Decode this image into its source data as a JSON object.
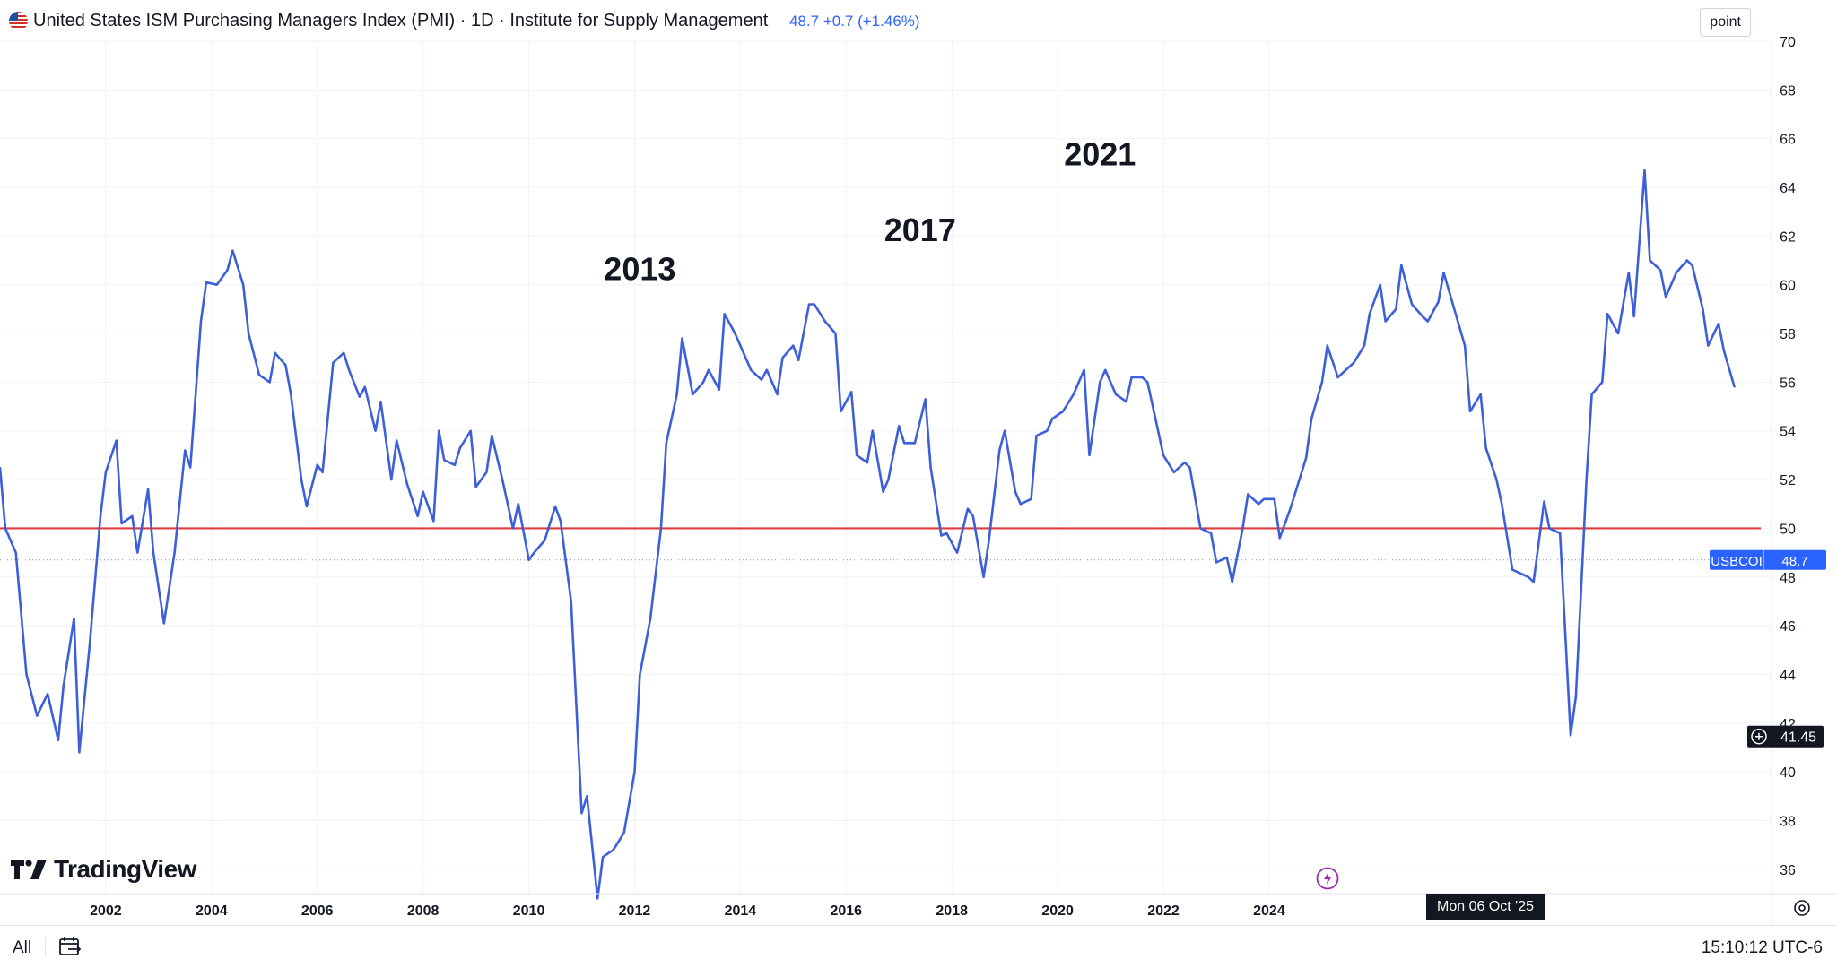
{
  "header": {
    "title": "United States ISM Purchasing Managers Index (PMI) · 1D · Institute for Supply Management",
    "last_value": "48.7",
    "change": "+0.7 (+1.46%)",
    "unit_button": "point",
    "flag_icon": "us-flag-icon"
  },
  "footer": {
    "range_label": "All",
    "calendar_icon": "calendar-range-icon",
    "clock": "15:10:12 UTC-6"
  },
  "branding": {
    "logo_text": "TradingView"
  },
  "price_scale": {
    "series_tag": "USBCOI",
    "series_value": "48.7",
    "crosshair_value": "41.45",
    "crosshair_date": "Mon 06 Oct '25"
  },
  "colors": {
    "series": "#3d5fd9",
    "threshold": "#e03b3b",
    "grid": "#f0f3fa",
    "tag_bg": "#2962ff"
  },
  "chart_data": {
    "type": "line",
    "title": "United States ISM Purchasing Managers Index (PMI)",
    "xlabel": "",
    "ylabel": "",
    "xlim": [
      2000.5,
      2034.0
    ],
    "ylim": [
      35,
      70
    ],
    "x_ticks": [
      "2002",
      "2004",
      "2006",
      "2008",
      "2010",
      "2012",
      "2014",
      "2016",
      "2018",
      "2020",
      "2022",
      "2024"
    ],
    "y_ticks": [
      36,
      38,
      40,
      42,
      44,
      46,
      48,
      50,
      52,
      54,
      56,
      58,
      60,
      62,
      64,
      66,
      68,
      70
    ],
    "threshold_line": 50,
    "last_value_line": 48.7,
    "annotations": [
      {
        "text": "2013",
        "x": 2012.6,
        "y": 60.2
      },
      {
        "text": "2017",
        "x": 2017.9,
        "y": 61.8
      },
      {
        "text": "2021",
        "x": 2021.3,
        "y": 64.9
      }
    ],
    "series": [
      {
        "name": "USBCOI",
        "points": [
          [
            2000.5,
            52.5
          ],
          [
            2000.6,
            50.0
          ],
          [
            2000.8,
            49.0
          ],
          [
            2001.0,
            44.0
          ],
          [
            2001.2,
            42.3
          ],
          [
            2001.4,
            43.2
          ],
          [
            2001.6,
            41.3
          ],
          [
            2001.7,
            43.5
          ],
          [
            2001.9,
            46.3
          ],
          [
            2002.0,
            40.8
          ],
          [
            2002.2,
            45.3
          ],
          [
            2002.4,
            50.5
          ],
          [
            2002.5,
            52.3
          ],
          [
            2002.7,
            53.6
          ],
          [
            2002.8,
            50.2
          ],
          [
            2003.0,
            50.5
          ],
          [
            2003.1,
            49.0
          ],
          [
            2003.3,
            51.6
          ],
          [
            2003.4,
            49.0
          ],
          [
            2003.6,
            46.1
          ],
          [
            2003.8,
            49.0
          ],
          [
            2004.0,
            53.2
          ],
          [
            2004.1,
            52.5
          ],
          [
            2004.3,
            58.5
          ],
          [
            2004.4,
            60.1
          ],
          [
            2004.6,
            60.0
          ],
          [
            2004.8,
            60.6
          ],
          [
            2004.9,
            61.4
          ],
          [
            2005.1,
            60.0
          ],
          [
            2005.2,
            58.0
          ],
          [
            2005.4,
            56.3
          ],
          [
            2005.6,
            56.0
          ],
          [
            2005.7,
            57.2
          ],
          [
            2005.9,
            56.7
          ],
          [
            2006.0,
            55.5
          ],
          [
            2006.2,
            52.0
          ],
          [
            2006.3,
            50.9
          ],
          [
            2006.5,
            52.6
          ],
          [
            2006.6,
            52.3
          ],
          [
            2006.8,
            56.8
          ],
          [
            2007.0,
            57.2
          ],
          [
            2007.1,
            56.5
          ],
          [
            2007.3,
            55.4
          ],
          [
            2007.4,
            55.8
          ],
          [
            2007.6,
            54.0
          ],
          [
            2007.7,
            55.2
          ],
          [
            2007.9,
            52.0
          ],
          [
            2008.0,
            53.6
          ],
          [
            2008.2,
            51.8
          ],
          [
            2008.4,
            50.5
          ],
          [
            2008.5,
            51.5
          ],
          [
            2008.7,
            50.3
          ],
          [
            2008.8,
            54.0
          ],
          [
            2008.9,
            52.8
          ],
          [
            2009.1,
            52.6
          ],
          [
            2009.2,
            53.3
          ],
          [
            2009.4,
            54.0
          ],
          [
            2009.5,
            51.7
          ],
          [
            2009.7,
            52.3
          ],
          [
            2009.8,
            53.8
          ],
          [
            2010.0,
            52.0
          ],
          [
            2010.2,
            50.0
          ],
          [
            2010.3,
            51.0
          ],
          [
            2010.5,
            48.7
          ],
          [
            2010.6,
            49.0
          ],
          [
            2010.8,
            49.5
          ],
          [
            2011.0,
            50.9
          ],
          [
            2011.1,
            50.3
          ],
          [
            2011.3,
            47.0
          ],
          [
            2011.5,
            38.3
          ],
          [
            2011.6,
            39.0
          ],
          [
            2011.8,
            34.8
          ],
          [
            2011.9,
            36.5
          ],
          [
            2012.1,
            36.8
          ],
          [
            2012.3,
            37.5
          ],
          [
            2012.5,
            40.0
          ],
          [
            2012.6,
            44.0
          ],
          [
            2012.8,
            46.3
          ],
          [
            2013.0,
            50.0
          ],
          [
            2013.1,
            53.5
          ],
          [
            2013.3,
            55.5
          ],
          [
            2013.4,
            57.8
          ],
          [
            2013.6,
            55.5
          ],
          [
            2013.8,
            56.0
          ],
          [
            2013.9,
            56.5
          ],
          [
            2014.1,
            55.7
          ],
          [
            2014.2,
            58.8
          ],
          [
            2014.4,
            58.0
          ],
          [
            2014.6,
            57.0
          ],
          [
            2014.7,
            56.5
          ],
          [
            2014.9,
            56.1
          ],
          [
            2015.0,
            56.5
          ],
          [
            2015.2,
            55.5
          ],
          [
            2015.3,
            57.0
          ],
          [
            2015.5,
            57.5
          ],
          [
            2015.6,
            56.9
          ],
          [
            2015.8,
            59.2
          ],
          [
            2015.9,
            59.2
          ],
          [
            2016.1,
            58.5
          ],
          [
            2016.3,
            58.0
          ],
          [
            2016.4,
            54.8
          ],
          [
            2016.6,
            55.6
          ],
          [
            2016.7,
            53.0
          ],
          [
            2016.9,
            52.7
          ],
          [
            2017.0,
            54.0
          ],
          [
            2017.2,
            51.5
          ],
          [
            2017.3,
            52.0
          ],
          [
            2017.5,
            54.2
          ],
          [
            2017.6,
            53.5
          ],
          [
            2017.8,
            53.5
          ],
          [
            2018.0,
            55.3
          ],
          [
            2018.1,
            52.5
          ],
          [
            2018.3,
            49.7
          ],
          [
            2018.4,
            49.8
          ],
          [
            2018.6,
            49.0
          ],
          [
            2018.8,
            50.8
          ],
          [
            2018.9,
            50.5
          ],
          [
            2019.1,
            48.0
          ],
          [
            2019.2,
            49.5
          ],
          [
            2019.4,
            53.2
          ],
          [
            2019.5,
            54.0
          ],
          [
            2019.7,
            51.5
          ],
          [
            2019.8,
            51.0
          ],
          [
            2020.0,
            51.2
          ],
          [
            2020.1,
            53.8
          ],
          [
            2020.3,
            54.0
          ],
          [
            2020.4,
            54.5
          ],
          [
            2020.6,
            54.8
          ],
          [
            2020.8,
            55.5
          ],
          [
            2021.0,
            56.5
          ],
          [
            2021.1,
            53.0
          ],
          [
            2021.3,
            56.0
          ],
          [
            2021.4,
            56.5
          ],
          [
            2021.6,
            55.5
          ],
          [
            2021.8,
            55.2
          ],
          [
            2021.9,
            56.2
          ],
          [
            2022.1,
            56.2
          ],
          [
            2022.2,
            56.0
          ],
          [
            2022.4,
            54.0
          ],
          [
            2022.5,
            53.0
          ],
          [
            2022.7,
            52.3
          ],
          [
            2022.9,
            52.7
          ],
          [
            2023.0,
            52.5
          ],
          [
            2023.2,
            50.0
          ],
          [
            2023.4,
            49.8
          ],
          [
            2023.5,
            48.6
          ],
          [
            2023.7,
            48.8
          ],
          [
            2023.8,
            47.8
          ],
          [
            2024.0,
            50.0
          ],
          [
            2024.1,
            51.4
          ],
          [
            2024.3,
            51.0
          ],
          [
            2024.4,
            51.2
          ],
          [
            2024.6,
            51.2
          ],
          [
            2024.7,
            49.6
          ],
          [
            2024.9,
            50.8
          ],
          [
            2025.0,
            51.5
          ],
          [
            2025.2,
            52.9
          ],
          [
            2025.3,
            54.5
          ],
          [
            2025.5,
            56.0
          ],
          [
            2025.6,
            57.5
          ],
          [
            2025.8,
            56.2
          ],
          [
            2025.9,
            56.4
          ],
          [
            2026.1,
            56.8
          ],
          [
            2026.3,
            57.5
          ],
          [
            2026.4,
            58.8
          ],
          [
            2026.6,
            60.0
          ],
          [
            2026.7,
            58.5
          ],
          [
            2026.9,
            59.0
          ],
          [
            2027.0,
            60.8
          ],
          [
            2027.2,
            59.2
          ],
          [
            2027.4,
            58.7
          ],
          [
            2027.5,
            58.5
          ],
          [
            2027.7,
            59.3
          ],
          [
            2027.8,
            60.5
          ],
          [
            2028.0,
            59.0
          ],
          [
            2028.2,
            57.5
          ],
          [
            2028.3,
            54.8
          ],
          [
            2028.5,
            55.5
          ],
          [
            2028.6,
            53.3
          ],
          [
            2028.8,
            52.0
          ],
          [
            2028.9,
            51.0
          ],
          [
            2029.1,
            48.3
          ],
          [
            2029.2,
            48.2
          ],
          [
            2029.4,
            48.0
          ],
          [
            2029.5,
            47.8
          ],
          [
            2029.7,
            51.1
          ],
          [
            2029.8,
            50.0
          ],
          [
            2030.0,
            49.8
          ],
          [
            2030.2,
            41.5
          ],
          [
            2030.3,
            43.1
          ],
          [
            2030.5,
            52.0
          ],
          [
            2030.6,
            55.5
          ],
          [
            2030.8,
            56.0
          ],
          [
            2030.9,
            58.8
          ],
          [
            2031.1,
            58.0
          ],
          [
            2031.3,
            60.5
          ],
          [
            2031.4,
            58.7
          ],
          [
            2031.6,
            64.7
          ],
          [
            2031.7,
            61.0
          ],
          [
            2031.9,
            60.6
          ],
          [
            2032.0,
            59.5
          ],
          [
            2032.2,
            60.5
          ],
          [
            2032.4,
            61.0
          ],
          [
            2032.5,
            60.8
          ],
          [
            2032.7,
            59.0
          ],
          [
            2032.8,
            57.5
          ],
          [
            2033.0,
            58.4
          ],
          [
            2033.1,
            57.3
          ],
          [
            2033.3,
            55.8
          ]
        ]
      }
    ]
  }
}
